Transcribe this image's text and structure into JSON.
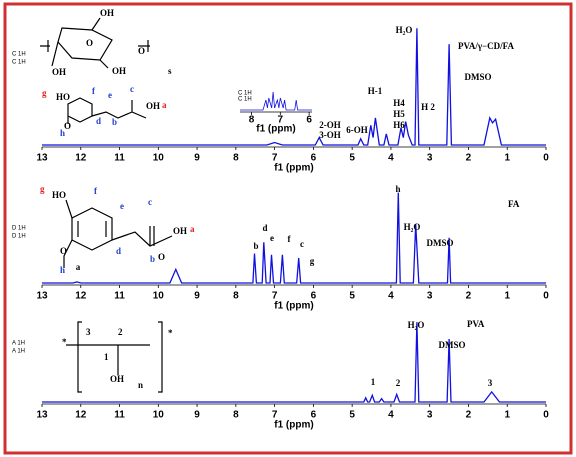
{
  "chart_data": [
    {
      "type": "line",
      "title": "PVA/γ−CD/FA",
      "xlabel": "f1 (ppm)",
      "color": "#1010e0",
      "xlim": [
        13,
        0
      ],
      "xticks": [
        13,
        12,
        11,
        10,
        9,
        8,
        7,
        6,
        5,
        4,
        3,
        2,
        1,
        0
      ],
      "ylim": [
        0,
        100
      ],
      "trace_labels": [
        "C 1H",
        "C 1H"
      ],
      "x": [
        13,
        7.2,
        7.0,
        6.8,
        5.95,
        5.85,
        5.75,
        4.85,
        4.78,
        4.7,
        4.6,
        4.52,
        4.46,
        4.4,
        4.3,
        4.18,
        4.12,
        4.05,
        3.82,
        3.74,
        3.68,
        3.62,
        3.55,
        3.45,
        3.38,
        3.33,
        3.28,
        2.56,
        2.5,
        2.44,
        1.6,
        1.45,
        1.38,
        1.3,
        1.15,
        0
      ],
      "values": [
        0,
        0,
        2,
        0,
        0,
        6,
        0,
        0,
        5,
        0,
        0,
        16,
        6,
        22,
        0,
        0,
        9,
        0,
        0,
        14,
        6,
        19,
        8,
        0,
        0,
        95,
        0,
        0,
        82,
        0,
        0,
        22,
        18,
        21,
        0,
        0
      ],
      "annotations": [
        "H₂O",
        "DMSO",
        "H-1",
        "H4",
        "H5",
        "H6",
        "H 2",
        "2-OH",
        "3-OH",
        "6-OH"
      ],
      "structure_labels": [
        "OH",
        "OH",
        "OH",
        "O",
        "O",
        "s",
        "g",
        "HO",
        "f",
        "e",
        "c",
        "OH",
        "a",
        "O",
        "h",
        "d",
        "b"
      ],
      "inset": {
        "xlabel": "f1 (ppm)",
        "xlim": [
          8.4,
          5.9
        ],
        "xticks": [
          8,
          7,
          6
        ],
        "ylim": [
          0,
          10
        ],
        "trace_labels": [
          "C 1H",
          "C 1H"
        ],
        "x": [
          8.4,
          7.6,
          7.5,
          7.45,
          7.4,
          7.3,
          7.25,
          7.2,
          7.1,
          7.05,
          7.0,
          6.9,
          6.85,
          6.8,
          6.5,
          6.45,
          6.4,
          5.9
        ],
        "values": [
          0,
          0,
          5,
          1,
          6,
          1,
          9,
          1,
          5,
          1,
          6,
          1,
          5,
          0,
          0,
          5,
          0,
          0
        ]
      }
    },
    {
      "type": "line",
      "title": "FA",
      "xlabel": "f1 (ppm)",
      "color": "#1010e0",
      "xlim": [
        13,
        0
      ],
      "xticks": [
        13,
        12,
        11,
        10,
        9,
        8,
        7,
        6,
        5,
        4,
        3,
        2,
        1,
        0
      ],
      "ylim": [
        0,
        100
      ],
      "trace_labels": [
        "D 1H",
        "D 1H"
      ],
      "x": [
        13,
        12.2,
        12.1,
        12.0,
        9.7,
        9.55,
        9.4,
        7.56,
        7.52,
        7.47,
        7.32,
        7.28,
        7.22,
        7.12,
        7.08,
        7.03,
        6.85,
        6.8,
        6.75,
        6.43,
        6.38,
        6.33,
        3.86,
        3.81,
        3.76,
        3.42,
        3.36,
        3.28,
        2.54,
        2.5,
        2.46,
        0
      ],
      "values": [
        0,
        0,
        1,
        0,
        0,
        12,
        0,
        0,
        26,
        0,
        0,
        36,
        0,
        0,
        25,
        0,
        0,
        25,
        0,
        0,
        22,
        0,
        0,
        80,
        0,
        0,
        52,
        0,
        0,
        40,
        0,
        0
      ],
      "annotations": [
        "h",
        "H₂O",
        "DMSO",
        "b",
        "d",
        "e",
        "f",
        "c",
        "g",
        "a"
      ],
      "structure_labels": [
        "g",
        "HO",
        "f",
        "e",
        "c",
        "OH",
        "a",
        "O",
        "O",
        "h",
        "d",
        "b"
      ]
    },
    {
      "type": "line",
      "title": "PVA",
      "xlabel": "f1 (ppm)",
      "color": "#1010e0",
      "xlim": [
        13,
        0
      ],
      "xticks": [
        13,
        12,
        11,
        10,
        9,
        8,
        7,
        6,
        5,
        4,
        3,
        2,
        1,
        0
      ],
      "ylim": [
        0,
        100
      ],
      "trace_labels": [
        "A 1H",
        "A 1H"
      ],
      "x": [
        13,
        4.7,
        4.65,
        4.6,
        4.55,
        4.48,
        4.42,
        4.3,
        4.24,
        4.18,
        3.92,
        3.85,
        3.78,
        3.38,
        3.33,
        3.28,
        2.55,
        2.5,
        2.45,
        1.6,
        1.4,
        1.2,
        0
      ],
      "values": [
        0,
        0,
        5,
        0,
        0,
        8,
        0,
        0,
        4,
        0,
        0,
        9,
        0,
        0,
        95,
        0,
        0,
        75,
        0,
        0,
        12,
        0,
        0
      ],
      "annotations": [
        "H₂O",
        "DMSO",
        "1",
        "2",
        "3"
      ],
      "structure_labels": [
        "3",
        "2",
        "1",
        "OH",
        "n",
        "*",
        "*"
      ]
    }
  ]
}
